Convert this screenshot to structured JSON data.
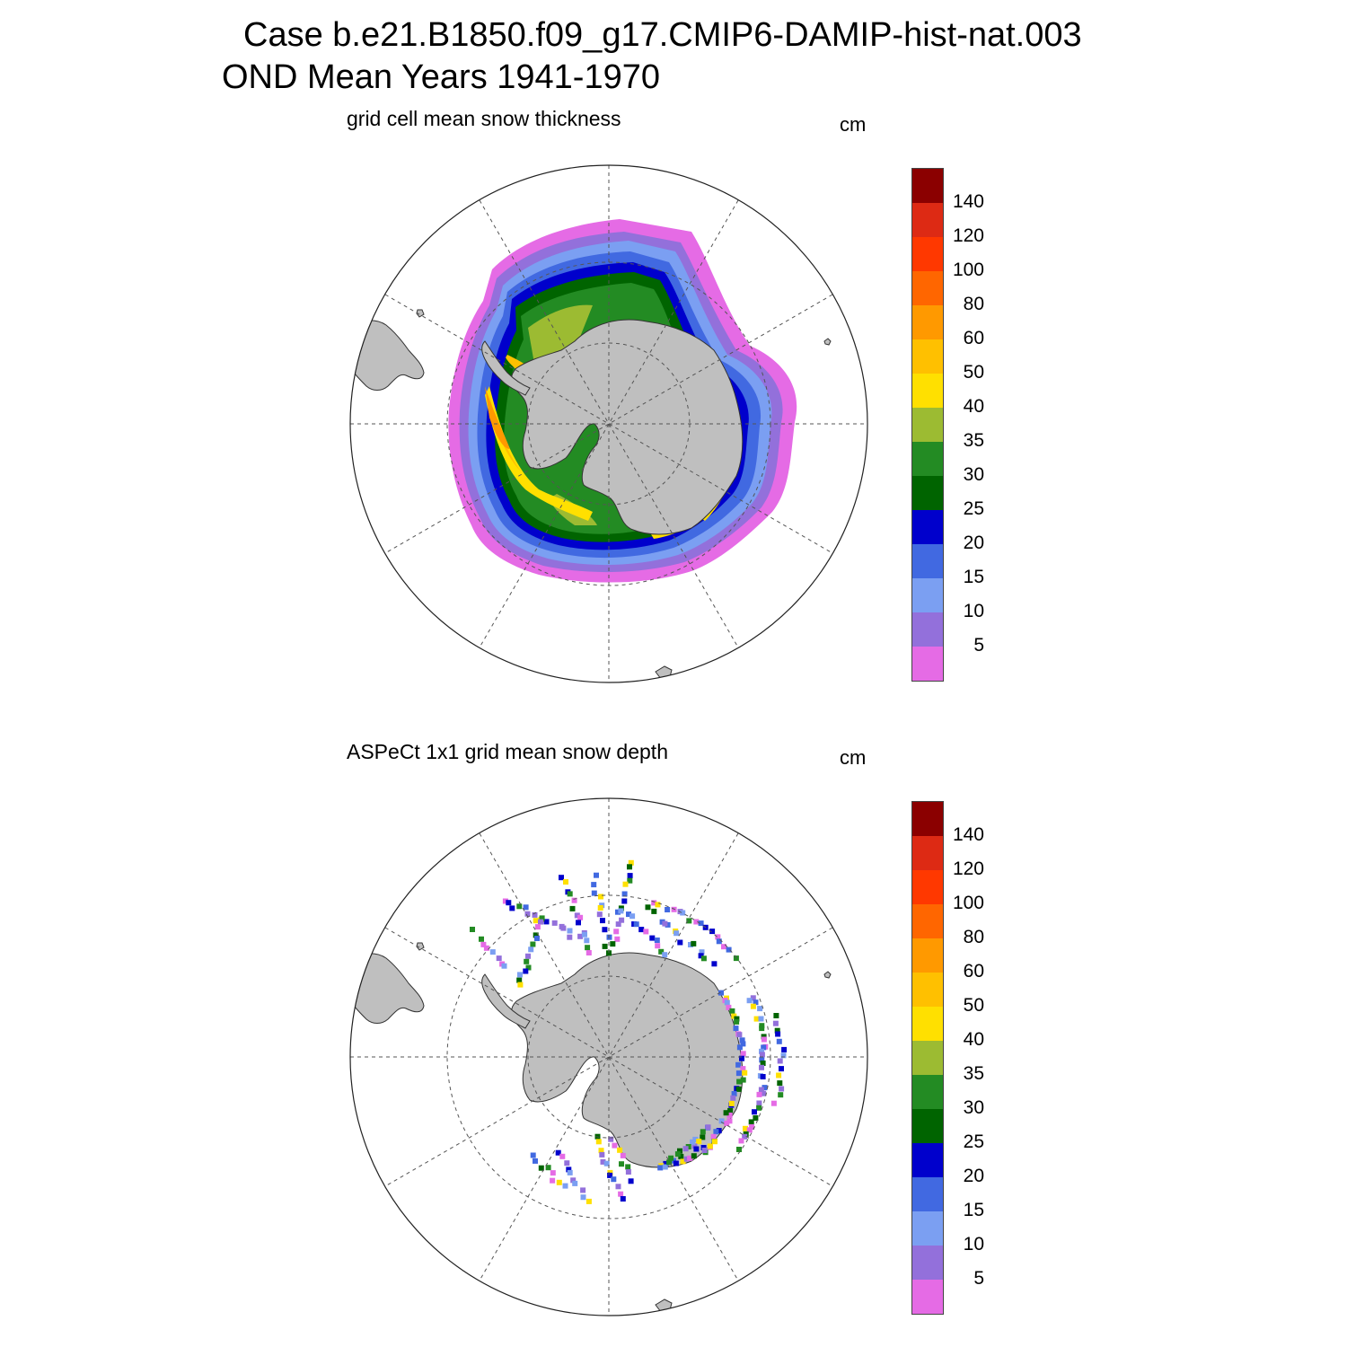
{
  "figure": {
    "title_line1": "Case b.e21.B1850.f09_g17.CMIP6-DAMIP-hist-nat.003",
    "title_line2": "OND Mean   Years 1941-1970"
  },
  "panels": [
    {
      "name": "model",
      "title": "grid cell mean snow thickness",
      "units": "cm"
    },
    {
      "name": "observations",
      "title": "ASPeCt 1x1 grid mean snow depth",
      "units": "cm"
    }
  ],
  "colorbar": {
    "levels": [
      "140",
      "120",
      "100",
      "80",
      "60",
      "50",
      "40",
      "35",
      "30",
      "25",
      "20",
      "15",
      "10",
      "5"
    ],
    "colors": [
      "#8b0000",
      "#dd2a14",
      "#ff3800",
      "#ff6600",
      "#ff9900",
      "#ffc000",
      "#ffe000",
      "#9cbb32",
      "#238b23",
      "#006400",
      "#0000cc",
      "#4169e1",
      "#7b9ff2",
      "#9370db",
      "#e56be5"
    ]
  },
  "map": {
    "projection": "south polar stereographic",
    "land_color": "#bfbfbf",
    "graticule": "dashed"
  }
}
